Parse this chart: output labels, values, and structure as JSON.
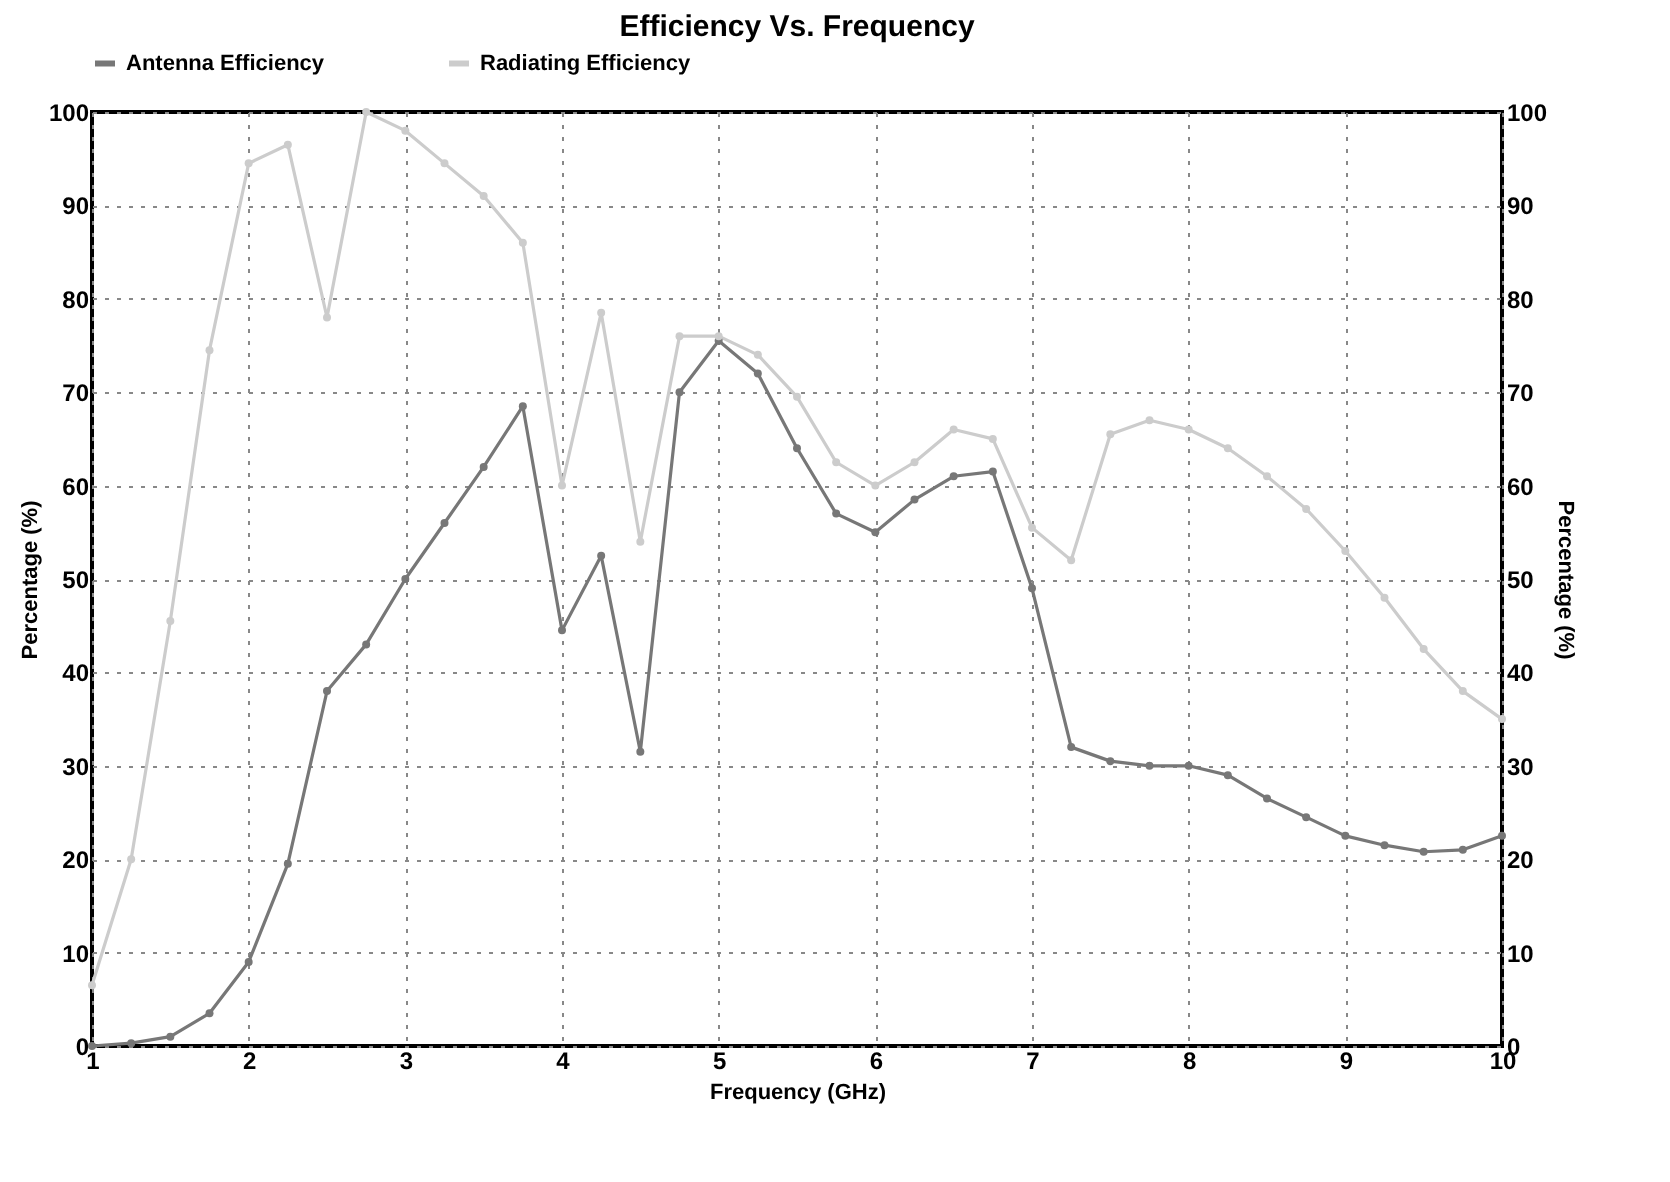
{
  "chart_data": {
    "type": "line",
    "title": "Efficiency Vs. Frequency",
    "xlabel": "Frequency (GHz)",
    "ylabel": "Percentage (%)",
    "y2label": "Percentage (%)",
    "x": [
      1,
      1.25,
      1.5,
      1.75,
      2,
      2.25,
      2.5,
      2.75,
      3,
      3.25,
      3.5,
      3.75,
      4,
      4.25,
      4.5,
      4.75,
      5,
      5.25,
      5.5,
      5.75,
      6,
      6.25,
      6.5,
      6.75,
      7,
      7.25,
      7.5,
      7.75,
      8,
      8.25,
      8.5,
      8.75,
      9,
      9.25,
      9.5,
      9.75,
      10
    ],
    "series": [
      {
        "name": "Antenna Efficiency",
        "color": "#777777",
        "values": [
          0,
          0.3,
          1,
          3.5,
          9,
          19.5,
          38,
          43,
          50,
          56,
          62,
          68.5,
          44.5,
          52.5,
          31.5,
          70,
          75.5,
          72,
          64,
          57,
          55,
          58.5,
          61,
          61.5,
          49,
          32,
          30.5,
          30,
          30,
          29,
          26.5,
          24.5,
          22.5,
          21.5,
          20.8,
          21,
          22.5
        ]
      },
      {
        "name": "Radiating Efficiency",
        "color": "#cccccc",
        "values": [
          6.5,
          20,
          45.5,
          74.5,
          94.5,
          96.5,
          78,
          100,
          98,
          94.5,
          91,
          86,
          60,
          78.5,
          54,
          76,
          76,
          74,
          69.5,
          62.5,
          60,
          62.5,
          66,
          65,
          55.5,
          52,
          65.5,
          67,
          66,
          64,
          61,
          57.5,
          53,
          48,
          42.5,
          38,
          35
        ]
      }
    ],
    "xlim": [
      1,
      10
    ],
    "xticks": [
      1,
      2,
      3,
      4,
      5,
      6,
      7,
      8,
      9,
      10
    ],
    "ylim": [
      0,
      100
    ],
    "yticks": [
      0,
      10,
      20,
      30,
      40,
      50,
      60,
      70,
      80,
      90,
      100
    ],
    "y2lim": [
      0,
      100
    ],
    "y2ticks": [
      0,
      10,
      20,
      30,
      40,
      50,
      60,
      70,
      80,
      90,
      100
    ],
    "grid": true,
    "legend": "top",
    "marker": "circle",
    "line_style": "solid"
  }
}
